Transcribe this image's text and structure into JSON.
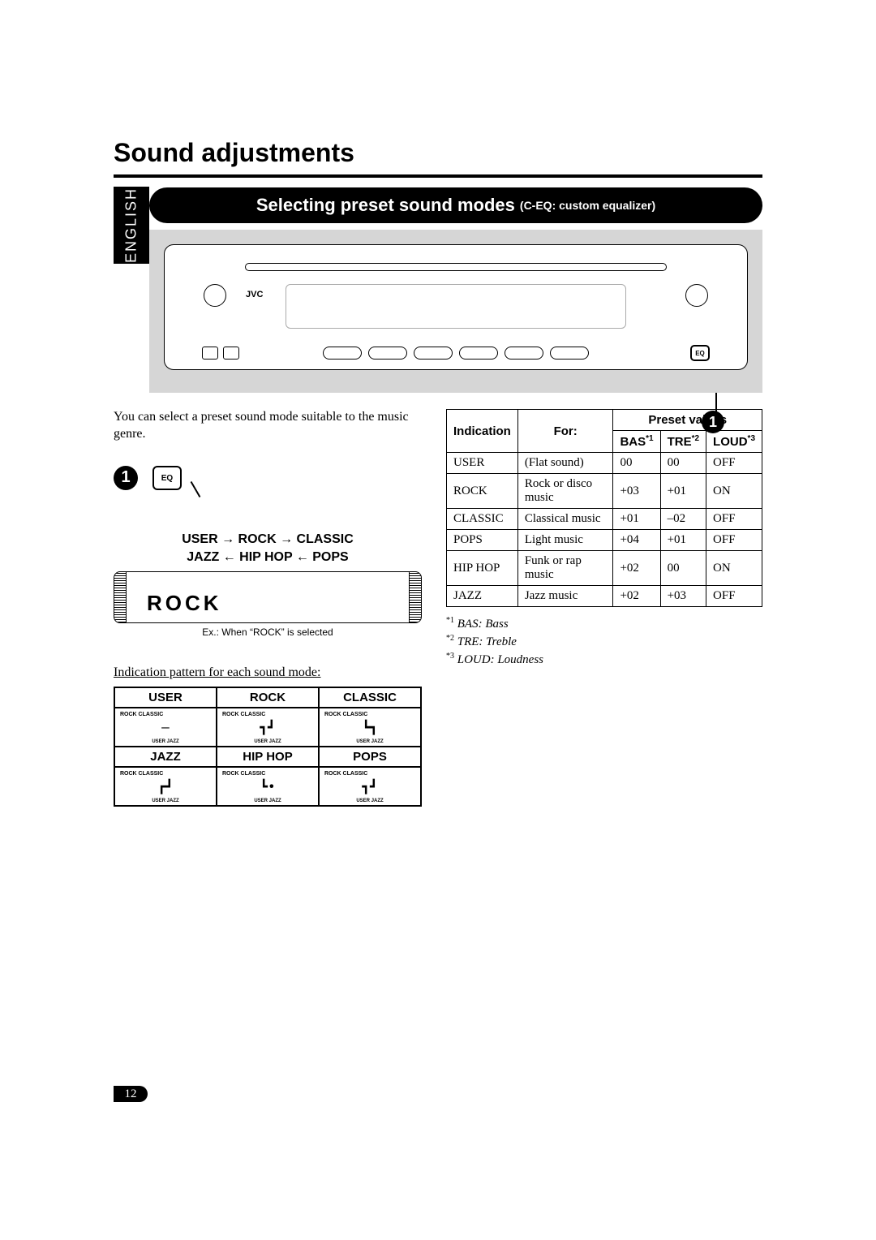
{
  "page": {
    "title": "Sound adjustments",
    "language_tab": "ENGLISH",
    "page_number": "12"
  },
  "banner": {
    "main": "Selecting preset sound modes",
    "sub": "(C-EQ: custom equalizer)"
  },
  "stereo": {
    "brand": "JVC",
    "eq_label": "EQ"
  },
  "intro": "You can select a preset sound mode suitable to the music genre.",
  "step1": {
    "badge": "1",
    "eq_label": "EQ",
    "cycle_line1": "USER → ROCK → CLASSIC",
    "cycle_line2": "JAZZ ← HIP HOP ← POPS",
    "display_text": "ROCK",
    "example": "Ex.: When “ROCK” is selected"
  },
  "pattern": {
    "heading": "Indication pattern for each sound mode:",
    "row1": [
      "USER",
      "ROCK",
      "CLASSIC"
    ],
    "row2": [
      "JAZZ",
      "HIP HOP",
      "POPS"
    ],
    "glyphs": {
      "USER": "—",
      "ROCK": "┓┛",
      "CLASSIC": "┗┓",
      "JAZZ": "┏┛",
      "HIP HOP": "┗•",
      "POPS": "┓┛"
    },
    "arc_label": "ROCK CLASSIC",
    "foot_label": "USER  JAZZ"
  },
  "preset_table": {
    "headers": {
      "indication": "Indication",
      "for": "For:",
      "preset_values": "Preset values",
      "bas": "BAS",
      "bas_sup": "*1",
      "tre": "TRE",
      "tre_sup": "*2",
      "loud": "LOUD",
      "loud_sup": "*3"
    },
    "rows": [
      {
        "ind": "USER",
        "for": "(Flat sound)",
        "bas": "00",
        "tre": "00",
        "loud": "OFF"
      },
      {
        "ind": "ROCK",
        "for": "Rock or disco music",
        "bas": "+03",
        "tre": "+01",
        "loud": "ON"
      },
      {
        "ind": "CLASSIC",
        "for": "Classical music",
        "bas": "+01",
        "tre": "–02",
        "loud": "OFF"
      },
      {
        "ind": "POPS",
        "for": "Light music",
        "bas": "+04",
        "tre": "+01",
        "loud": "OFF"
      },
      {
        "ind": "HIP HOP",
        "for": "Funk or rap music",
        "bas": "+02",
        "tre": "00",
        "loud": "ON"
      },
      {
        "ind": "JAZZ",
        "for": "Jazz music",
        "bas": "+02",
        "tre": "+03",
        "loud": "OFF"
      }
    ]
  },
  "footnotes": {
    "f1": {
      "sup": "*1",
      "text": "BAS: Bass"
    },
    "f2": {
      "sup": "*2",
      "text": "TRE: Treble"
    },
    "f3": {
      "sup": "*3",
      "text": "LOUD: Loudness"
    }
  },
  "colors": {
    "black": "#000000",
    "grey_box": "#d6d6d6",
    "white": "#ffffff"
  }
}
